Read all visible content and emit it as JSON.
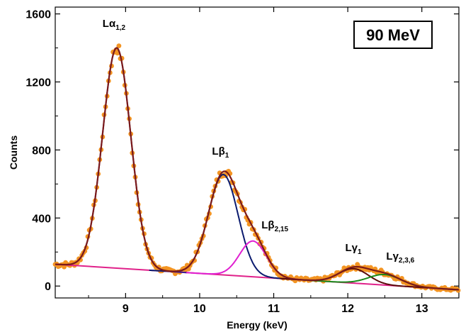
{
  "chart_data": {
    "type": "scatter",
    "title": "",
    "annotation": "90 MeV",
    "xlabel": "Energy (keV)",
    "ylabel": "Counts",
    "xlim": [
      8.05,
      13.5
    ],
    "ylim": [
      -70,
      1640
    ],
    "xticks": [
      9,
      10,
      11,
      12,
      13
    ],
    "xtick_labels": [
      "9",
      "10",
      "11",
      "12",
      "13"
    ],
    "yticks": [
      0,
      400,
      800,
      1200,
      1600
    ],
    "ytick_labels": [
      "0",
      "400",
      "800",
      "1200",
      "1600"
    ],
    "colors": {
      "data_points": "#f39422",
      "total_fit": "#7b1a1a",
      "background": "#e0218a",
      "L_alpha": "#3b1d8f",
      "L_beta1": "#0a1a6e",
      "L_beta2_15": "#e020d0",
      "L_gamma1": "#5a0a0a",
      "L_gamma2_3_6": "#1a8a1a"
    },
    "background_line": {
      "x": [
        8.05,
        13.5
      ],
      "y": [
        128,
        -22
      ]
    },
    "peaks": [
      {
        "name": "Lα1,2",
        "label_main": "Lα",
        "label_sub": "1,2",
        "center": 8.88,
        "amplitude": 1295,
        "sigma": 0.19
      },
      {
        "name": "Lβ1",
        "label_main": "Lβ",
        "label_sub": "1",
        "center": 10.32,
        "amplitude": 590,
        "sigma": 0.2
      },
      {
        "name": "Lβ2,15",
        "label_main": "Lβ",
        "label_sub": "2,15",
        "center": 10.72,
        "amplitude": 210,
        "sigma": 0.18
      },
      {
        "name": "Lγ1",
        "label_main": "Lγ",
        "label_sub": "1",
        "center": 12.08,
        "amplitude": 85,
        "sigma": 0.2
      },
      {
        "name": "Lγ2,3,6",
        "label_main": "Lγ",
        "label_sub": "2,3,6",
        "center": 12.5,
        "amplitude": 62,
        "sigma": 0.22
      }
    ],
    "data_range": [
      8.05,
      13.5
    ],
    "data_step": 0.02
  }
}
